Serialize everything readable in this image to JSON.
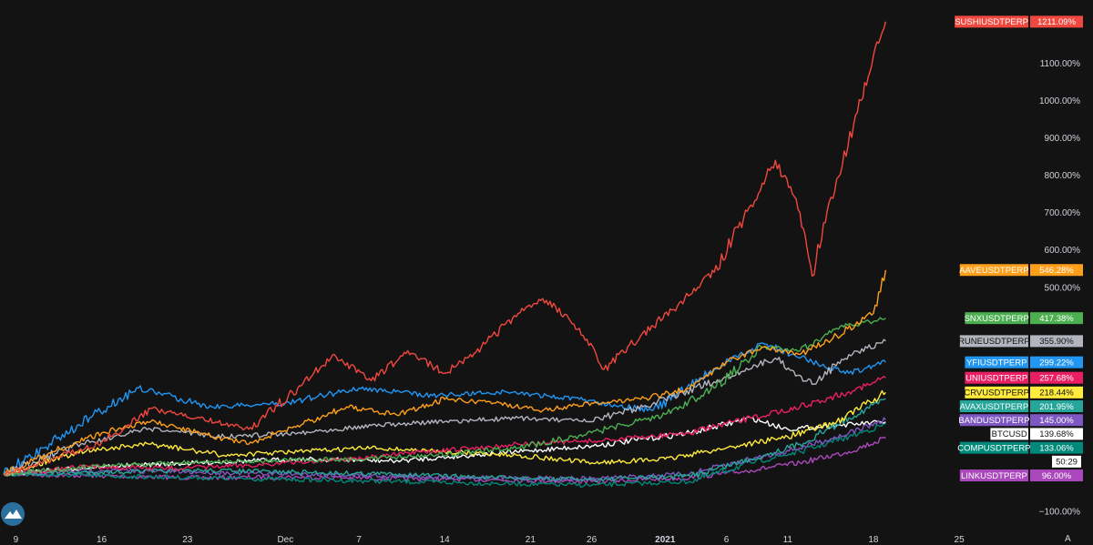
{
  "chart_data": {
    "type": "line",
    "y_unit": "%",
    "y_ticks": [
      {
        "value": 1100,
        "label": "1100.00%"
      },
      {
        "value": 1000,
        "label": "1000.00%"
      },
      {
        "value": 900,
        "label": "900.00%"
      },
      {
        "value": 800,
        "label": "800.00%"
      },
      {
        "value": 700,
        "label": "700.00%"
      },
      {
        "value": 600,
        "label": "600.00%"
      },
      {
        "value": 500,
        "label": "500.00%"
      },
      {
        "value": -100,
        "label": "−100.00%"
      }
    ],
    "x_ticks": [
      {
        "label": "9",
        "date": "2020-11-09",
        "bold": false
      },
      {
        "label": "16",
        "date": "2020-11-16",
        "bold": false
      },
      {
        "label": "23",
        "date": "2020-11-23",
        "bold": false
      },
      {
        "label": "Dec",
        "date": "2020-12-01",
        "bold": false
      },
      {
        "label": "7",
        "date": "2020-12-07",
        "bold": false
      },
      {
        "label": "14",
        "date": "2020-12-14",
        "bold": false
      },
      {
        "label": "21",
        "date": "2020-12-21",
        "bold": false
      },
      {
        "label": "26",
        "date": "2020-12-26",
        "bold": false
      },
      {
        "label": "2021",
        "date": "2021-01-01",
        "bold": true
      },
      {
        "label": "6",
        "date": "2021-01-06",
        "bold": false
      },
      {
        "label": "11",
        "date": "2021-01-11",
        "bold": false
      },
      {
        "label": "18",
        "date": "2021-01-18",
        "bold": false
      },
      {
        "label": "25",
        "date": "2021-01-25",
        "bold": false
      }
    ],
    "x_range": [
      "2020-11-08",
      "2021-01-29"
    ],
    "y_range": [
      -120,
      1240
    ],
    "grid": false,
    "series": [
      {
        "name": "SUSHIUSDTPERP",
        "value_label": "1211.09%",
        "last": 1211.09,
        "color": "#f0483e",
        "points": [
          [
            "2020-11-08",
            0
          ],
          [
            "2020-11-12",
            40
          ],
          [
            "2020-11-16",
            85
          ],
          [
            "2020-11-20",
            175
          ],
          [
            "2020-11-24",
            150
          ],
          [
            "2020-11-28",
            120
          ],
          [
            "2020-12-02",
            230
          ],
          [
            "2020-12-05",
            320
          ],
          [
            "2020-12-08",
            250
          ],
          [
            "2020-12-11",
            330
          ],
          [
            "2020-12-14",
            270
          ],
          [
            "2020-12-17",
            340
          ],
          [
            "2020-12-20",
            430
          ],
          [
            "2020-12-22",
            470
          ],
          [
            "2020-12-25",
            390
          ],
          [
            "2020-12-27",
            280
          ],
          [
            "2020-12-30",
            370
          ],
          [
            "2021-01-02",
            450
          ],
          [
            "2021-01-05",
            540
          ],
          [
            "2021-01-08",
            720
          ],
          [
            "2021-01-10",
            840
          ],
          [
            "2021-01-12",
            700
          ],
          [
            "2021-01-13",
            530
          ],
          [
            "2021-01-15",
            790
          ],
          [
            "2021-01-17",
            1000
          ],
          [
            "2021-01-18",
            1120
          ],
          [
            "2021-01-19",
            1211.09
          ]
        ]
      },
      {
        "name": "AAVEUSDTPERP",
        "value_label": "546.28%",
        "last": 546.28,
        "color": "#ff9f1a",
        "points": [
          [
            "2020-11-08",
            0
          ],
          [
            "2020-11-12",
            60
          ],
          [
            "2020-11-16",
            110
          ],
          [
            "2020-11-20",
            140
          ],
          [
            "2020-11-24",
            110
          ],
          [
            "2020-11-28",
            80
          ],
          [
            "2020-12-02",
            130
          ],
          [
            "2020-12-06",
            180
          ],
          [
            "2020-12-10",
            160
          ],
          [
            "2020-12-14",
            200
          ],
          [
            "2020-12-18",
            190
          ],
          [
            "2020-12-22",
            170
          ],
          [
            "2020-12-26",
            190
          ],
          [
            "2020-12-30",
            200
          ],
          [
            "2021-01-03",
            230
          ],
          [
            "2021-01-06",
            300
          ],
          [
            "2021-01-09",
            340
          ],
          [
            "2021-01-12",
            320
          ],
          [
            "2021-01-15",
            370
          ],
          [
            "2021-01-18",
            430
          ],
          [
            "2021-01-19",
            546.28
          ]
        ]
      },
      {
        "name": "SNXUSDTPERP",
        "value_label": "417.38%",
        "last": 417.38,
        "color": "#4caf50",
        "points": [
          [
            "2020-11-08",
            0
          ],
          [
            "2020-11-15",
            20
          ],
          [
            "2020-11-22",
            30
          ],
          [
            "2020-11-29",
            35
          ],
          [
            "2020-12-06",
            40
          ],
          [
            "2020-12-13",
            50
          ],
          [
            "2020-12-20",
            70
          ],
          [
            "2020-12-26",
            110
          ],
          [
            "2021-01-01",
            160
          ],
          [
            "2021-01-05",
            230
          ],
          [
            "2021-01-09",
            340
          ],
          [
            "2021-01-12",
            330
          ],
          [
            "2021-01-15",
            390
          ],
          [
            "2021-01-19",
            417.38
          ]
        ]
      },
      {
        "name": "RUNEUSDTPERP",
        "value_label": "355.90%",
        "last": 355.9,
        "color": "#b2b5be",
        "points": [
          [
            "2020-11-08",
            0
          ],
          [
            "2020-11-14",
            80
          ],
          [
            "2020-11-20",
            120
          ],
          [
            "2020-11-26",
            100
          ],
          [
            "2020-12-02",
            110
          ],
          [
            "2020-12-08",
            130
          ],
          [
            "2020-12-14",
            140
          ],
          [
            "2020-12-20",
            150
          ],
          [
            "2020-12-26",
            140
          ],
          [
            "2021-01-01",
            200
          ],
          [
            "2021-01-06",
            260
          ],
          [
            "2021-01-10",
            310
          ],
          [
            "2021-01-13",
            240
          ],
          [
            "2021-01-16",
            320
          ],
          [
            "2021-01-19",
            355.9
          ]
        ]
      },
      {
        "name": "YFIUSDTPERP",
        "value_label": "299.22%",
        "last": 299.22,
        "color": "#2196f3",
        "points": [
          [
            "2020-11-08",
            0
          ],
          [
            "2020-11-14",
            130
          ],
          [
            "2020-11-19",
            230
          ],
          [
            "2020-11-25",
            180
          ],
          [
            "2020-12-01",
            190
          ],
          [
            "2020-12-07",
            230
          ],
          [
            "2020-12-13",
            210
          ],
          [
            "2020-12-19",
            220
          ],
          [
            "2020-12-25",
            200
          ],
          [
            "2020-12-31",
            170
          ],
          [
            "2021-01-05",
            280
          ],
          [
            "2021-01-09",
            350
          ],
          [
            "2021-01-13",
            300
          ],
          [
            "2021-01-16",
            270
          ],
          [
            "2021-01-19",
            299.22
          ]
        ]
      },
      {
        "name": "UNIUSDTPERP",
        "value_label": "257.68%",
        "last": 257.68,
        "color": "#e91e63",
        "points": [
          [
            "2020-11-08",
            0
          ],
          [
            "2020-11-15",
            20
          ],
          [
            "2020-11-22",
            15
          ],
          [
            "2020-11-29",
            25
          ],
          [
            "2020-12-06",
            40
          ],
          [
            "2020-12-13",
            60
          ],
          [
            "2020-12-20",
            80
          ],
          [
            "2020-12-27",
            90
          ],
          [
            "2021-01-03",
            110
          ],
          [
            "2021-01-08",
            150
          ],
          [
            "2021-01-12",
            180
          ],
          [
            "2021-01-16",
            220
          ],
          [
            "2021-01-19",
            257.68
          ]
        ]
      },
      {
        "name": "CRVUSDTPERP",
        "value_label": "218.44%",
        "last": 218.44,
        "color": "#ffeb3b",
        "points": [
          [
            "2020-11-08",
            0
          ],
          [
            "2020-11-14",
            60
          ],
          [
            "2020-11-20",
            80
          ],
          [
            "2020-11-26",
            50
          ],
          [
            "2020-12-02",
            60
          ],
          [
            "2020-12-08",
            70
          ],
          [
            "2020-12-14",
            60
          ],
          [
            "2020-12-20",
            50
          ],
          [
            "2020-12-26",
            30
          ],
          [
            "2021-01-01",
            40
          ],
          [
            "2021-01-06",
            70
          ],
          [
            "2021-01-11",
            100
          ],
          [
            "2021-01-15",
            140
          ],
          [
            "2021-01-19",
            218.44
          ]
        ]
      },
      {
        "name": "AVAXUSDTPERP",
        "value_label": "201.95%",
        "last": 201.95,
        "color": "#26a69a",
        "points": [
          [
            "2020-11-08",
            0
          ],
          [
            "2020-11-16",
            5
          ],
          [
            "2020-11-24",
            10
          ],
          [
            "2020-12-02",
            5
          ],
          [
            "2020-12-10",
            0
          ],
          [
            "2020-12-18",
            -10
          ],
          [
            "2020-12-26",
            -15
          ],
          [
            "2021-01-03",
            -5
          ],
          [
            "2021-01-08",
            40
          ],
          [
            "2021-01-12",
            80
          ],
          [
            "2021-01-16",
            150
          ],
          [
            "2021-01-19",
            201.95
          ]
        ]
      },
      {
        "name": "BANDUSDTPERP",
        "value_label": "145.00%",
        "last": 145.0,
        "color": "#7e57c2",
        "points": [
          [
            "2020-11-08",
            0
          ],
          [
            "2020-11-16",
            10
          ],
          [
            "2020-11-24",
            5
          ],
          [
            "2020-12-02",
            0
          ],
          [
            "2020-12-10",
            -5
          ],
          [
            "2020-12-18",
            -10
          ],
          [
            "2020-12-26",
            -12
          ],
          [
            "2021-01-03",
            0
          ],
          [
            "2021-01-08",
            40
          ],
          [
            "2021-01-12",
            70
          ],
          [
            "2021-01-16",
            110
          ],
          [
            "2021-01-19",
            145.0
          ]
        ]
      },
      {
        "name": "BTCUSD",
        "value_label": "139.68%",
        "last": 139.68,
        "color": "#ffffff",
        "points": [
          [
            "2020-11-08",
            0
          ],
          [
            "2020-11-16",
            20
          ],
          [
            "2020-11-24",
            30
          ],
          [
            "2020-12-02",
            40
          ],
          [
            "2020-12-10",
            35
          ],
          [
            "2020-12-18",
            55
          ],
          [
            "2020-12-26",
            75
          ],
          [
            "2021-01-03",
            110
          ],
          [
            "2021-01-08",
            150
          ],
          [
            "2021-01-11",
            120
          ],
          [
            "2021-01-15",
            130
          ],
          [
            "2021-01-19",
            139.68
          ]
        ]
      },
      {
        "name": "",
        "value_label": "50:29",
        "last": 105,
        "color": "#ffffff",
        "tag_text_color": "#131313",
        "points": []
      },
      {
        "name": "COMPUSDTPERP",
        "value_label": "133.06%",
        "last": 133.06,
        "color": "#00897b",
        "points": [
          [
            "2020-11-08",
            0
          ],
          [
            "2020-11-16",
            -5
          ],
          [
            "2020-11-24",
            -10
          ],
          [
            "2020-12-02",
            -15
          ],
          [
            "2020-12-10",
            -20
          ],
          [
            "2020-12-18",
            -25
          ],
          [
            "2020-12-26",
            -30
          ],
          [
            "2021-01-03",
            -20
          ],
          [
            "2021-01-08",
            30
          ],
          [
            "2021-01-12",
            60
          ],
          [
            "2021-01-16",
            100
          ],
          [
            "2021-01-19",
            133.06
          ]
        ]
      },
      {
        "name": "LINKUSDTPERP",
        "value_label": "96.00%",
        "last": 96.0,
        "color": "#ab47bc",
        "points": [
          [
            "2020-11-08",
            0
          ],
          [
            "2020-11-16",
            -5
          ],
          [
            "2020-11-24",
            -10
          ],
          [
            "2020-12-02",
            -8
          ],
          [
            "2020-12-10",
            -12
          ],
          [
            "2020-12-18",
            -15
          ],
          [
            "2020-12-26",
            -20
          ],
          [
            "2021-01-03",
            -10
          ],
          [
            "2021-01-08",
            10
          ],
          [
            "2021-01-12",
            30
          ],
          [
            "2021-01-16",
            60
          ],
          [
            "2021-01-19",
            96.0
          ]
        ]
      }
    ]
  },
  "ui": {
    "logo_icon": "tradingview-mountain-icon",
    "axis_button_label": "A"
  }
}
